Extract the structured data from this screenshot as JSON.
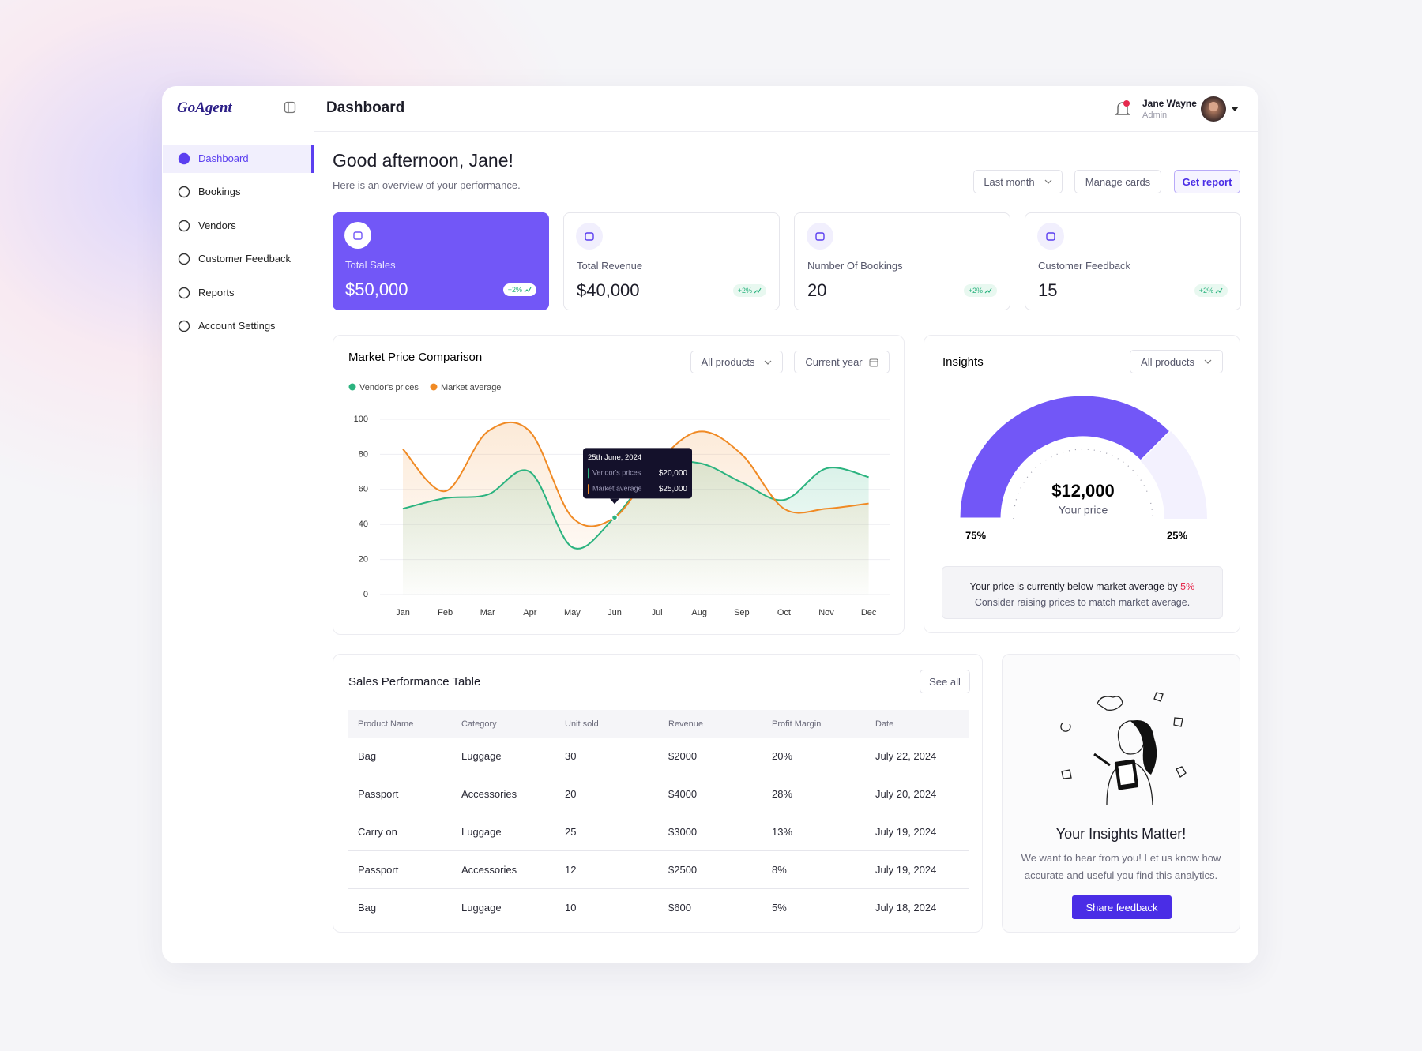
{
  "sidebar": {
    "logo": "GoAgent",
    "nav": [
      "Dashboard",
      "Bookings",
      "Vendors",
      "Customer Feedback",
      "Reports",
      "Account Settings"
    ]
  },
  "header": {
    "title": "Dashboard",
    "user_name": "Jane Wayne",
    "user_role": "Admin"
  },
  "greeting": {
    "title": "Good afternoon, Jane!",
    "subtitle": "Here is an overview of your performance."
  },
  "actions": [
    "Last month",
    "Manage cards",
    "Get report"
  ],
  "cards": [
    {
      "label": "Total Sales",
      "value": "$50,000",
      "change": "+2%"
    },
    {
      "label": "Total Revenue",
      "value": "$40,000",
      "change": "+2%"
    },
    {
      "label": "Number Of Bookings",
      "value": "20",
      "change": "+2%"
    },
    {
      "label": "Customer Feedback",
      "value": "15",
      "change": "+2%"
    }
  ],
  "chart_data": {
    "type": "line",
    "title": "Market Price Comparison",
    "controls": [
      "All products",
      "Current year"
    ],
    "categories": [
      "Jan",
      "Feb",
      "Mar",
      "Apr",
      "May",
      "Jun",
      "Jul",
      "Aug",
      "Sep",
      "Oct",
      "Nov",
      "Dec"
    ],
    "series": [
      {
        "name": "Vendor's prices",
        "color": "#2bb37f",
        "values": [
          49,
          55,
          57,
          70,
          27,
          44,
          72,
          75,
          64,
          54,
          72,
          67
        ]
      },
      {
        "name": "Market average",
        "color": "#f08a24",
        "values": [
          83,
          59,
          93,
          93,
          44,
          44,
          75,
          93,
          80,
          49,
          49,
          52
        ]
      }
    ],
    "ylim": [
      0,
      100
    ],
    "yticks": [
      0,
      20,
      40,
      60,
      80,
      100
    ],
    "grid": true,
    "tooltip": {
      "title": "25th June, 2024",
      "values": [
        "$20,000",
        "$25,000"
      ]
    }
  },
  "insights": {
    "title": "Insights",
    "control": "All products",
    "value": "$12,000",
    "caption": "Your price",
    "values": [
      75,
      25
    ],
    "value_labels": [
      "75%",
      "25%"
    ],
    "note": "Your price is currently below market average by",
    "note_highlight": "5%",
    "advice": "Consider raising prices to match market average."
  },
  "table": {
    "title": "Sales Performance Table",
    "action": "See all",
    "columns": [
      "Product Name",
      "Category",
      "Unit sold",
      "Revenue",
      "Profit Margin",
      "Date"
    ],
    "rows": [
      [
        "Bag",
        "Luggage",
        "30",
        "$2000",
        "20%",
        "July 22, 2024"
      ],
      [
        "Passport",
        "Accessories",
        "20",
        "$4000",
        "28%",
        "July 20, 2024"
      ],
      [
        "Carry on",
        "Luggage",
        "25",
        "$3000",
        "13%",
        "July 19, 2024"
      ],
      [
        "Passport",
        "Accessories",
        "12",
        "$2500",
        "8%",
        "July 19, 2024"
      ],
      [
        "Bag",
        "Luggage",
        "10",
        "$600",
        "5%",
        "July 18, 2024"
      ]
    ]
  },
  "feedback": {
    "title": "Your Insights Matter!",
    "body": "We want to hear from you! Let us know how accurate and useful you find this analytics.",
    "button": "Share feedback"
  }
}
